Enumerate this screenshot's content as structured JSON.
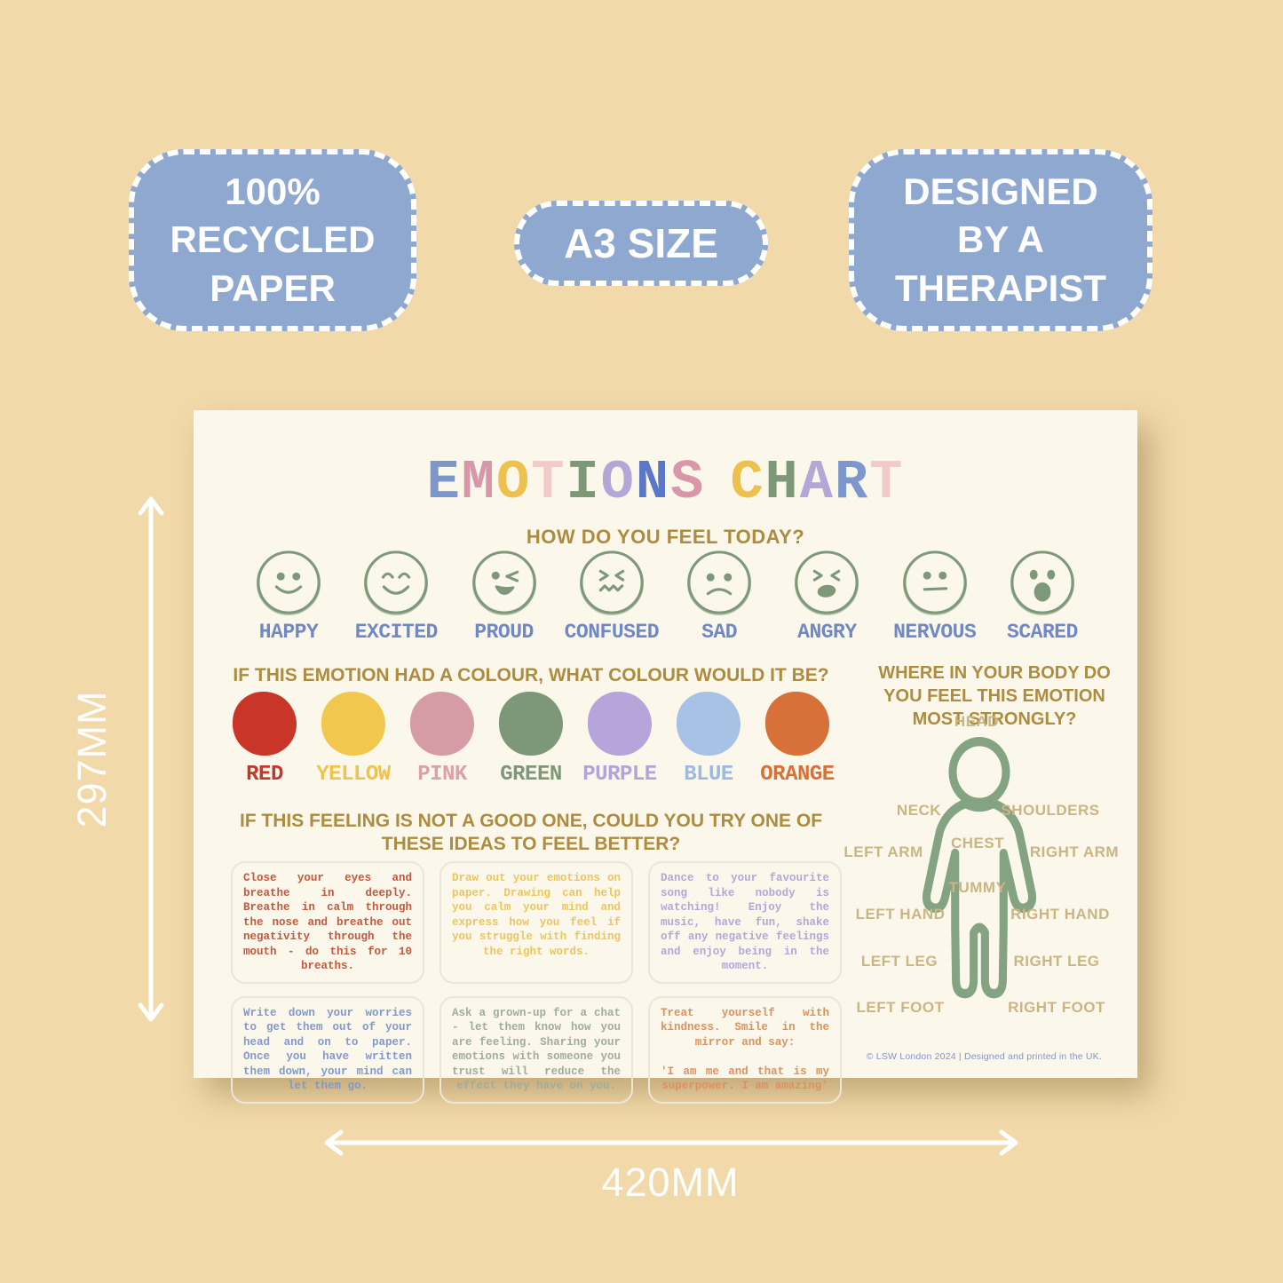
{
  "badges": [
    {
      "name": "recycled-paper",
      "lines": [
        "100%",
        "RECYCLED",
        "PAPER"
      ]
    },
    {
      "name": "a3-size",
      "lines": [
        "A3 SIZE"
      ]
    },
    {
      "name": "designed-by-therapist",
      "lines": [
        "DESIGNED",
        "BY A",
        "THERAPIST"
      ]
    }
  ],
  "dimensions": {
    "height_label": "297MM",
    "width_label": "420MM"
  },
  "poster": {
    "title_letters": [
      {
        "ch": "E",
        "color": "#7b97cc"
      },
      {
        "ch": "M",
        "color": "#d897a9"
      },
      {
        "ch": "O",
        "color": "#eec04d"
      },
      {
        "ch": "T",
        "color": "#f1cbc7"
      },
      {
        "ch": "I",
        "color": "#7d9878"
      },
      {
        "ch": "O",
        "color": "#b2a7d7"
      },
      {
        "ch": "N",
        "color": "#5d77c8"
      },
      {
        "ch": "S",
        "color": "#d897a9"
      },
      {
        "ch": " ",
        "color": ""
      },
      {
        "ch": "C",
        "color": "#eec04d"
      },
      {
        "ch": "H",
        "color": "#7d9878"
      },
      {
        "ch": "A",
        "color": "#b2a7d7"
      },
      {
        "ch": "R",
        "color": "#7b97cc"
      },
      {
        "ch": "T",
        "color": "#f1cbc7"
      }
    ],
    "subtitle": "HOW DO YOU FEEL TODAY?",
    "faces": [
      {
        "label": "HAPPY",
        "type": "happy"
      },
      {
        "label": "EXCITED",
        "type": "excited"
      },
      {
        "label": "PROUD",
        "type": "proud"
      },
      {
        "label": "CONFUSED",
        "type": "confused"
      },
      {
        "label": "SAD",
        "type": "sad"
      },
      {
        "label": "ANGRY",
        "type": "angry"
      },
      {
        "label": "NERVOUS",
        "type": "nervous"
      },
      {
        "label": "SCARED",
        "type": "scared"
      }
    ],
    "colour_question": "IF THIS EMOTION HAD A COLOUR, WHAT COLOUR WOULD IT BE?",
    "colours": [
      {
        "label": "RED",
        "fill": "#c93529",
        "label_color": "#c0392b"
      },
      {
        "label": "YELLOW",
        "fill": "#f2c74e",
        "label_color": "#eec34e"
      },
      {
        "label": "PINK",
        "fill": "#d69ca5",
        "label_color": "#d9a2ab"
      },
      {
        "label": "GREEN",
        "fill": "#7d9879",
        "label_color": "#7d9879"
      },
      {
        "label": "PURPLE",
        "fill": "#b6a4da",
        "label_color": "#b2a3d8"
      },
      {
        "label": "BLUE",
        "fill": "#a7c2e5",
        "label_color": "#9db9de"
      },
      {
        "label": "ORANGE",
        "fill": "#d8703a",
        "label_color": "#d8703a"
      }
    ],
    "ideas_question_line1": "IF THIS FEELING IS NOT A GOOD ONE, COULD YOU TRY ONE OF",
    "ideas_question_line2": "THESE IDEAS TO FEEL BETTER?",
    "ideas": [
      {
        "color": "#c4573e",
        "text": "Close your eyes and breathe in deeply. Breathe in calm through the nose and breathe out negativity through the mouth - do this for 10 breaths."
      },
      {
        "color": "#ecc55e",
        "text": "Draw out your emotions on paper. Drawing can help you calm your mind and express how you feel if you struggle with finding the right words."
      },
      {
        "color": "#b2a8d8",
        "text": "Dance to your favourite song like nobody is watching! Enjoy the music, have fun, shake off any negative feelings and enjoy being in the moment."
      },
      {
        "color": "#8199cc",
        "text": "Write down your worries to get them out of your head and on to paper. Once you have written them down, your mind can let them go."
      },
      {
        "color": "#a0ad9b",
        "text": "Ask a grown-up for a chat - let them know how you are feeling. Sharing your emotions with someone you trust will reduce the effect they have on you."
      },
      {
        "color": "#dc9160",
        "text": "Treat yourself with kindness. Smile in the mirror and say:\n\n'I am me and that is my superpower. I am amazing'"
      }
    ],
    "body_question": "WHERE IN YOUR BODY DO YOU FEEL THIS EMOTION MOST STRONGLY?",
    "body_labels": [
      {
        "id": "head",
        "label": "HEAD"
      },
      {
        "id": "neck",
        "label": "NECK"
      },
      {
        "id": "shoulders",
        "label": "SHOULDERS"
      },
      {
        "id": "left-arm",
        "label": "LEFT ARM"
      },
      {
        "id": "chest",
        "label": "CHEST"
      },
      {
        "id": "right-arm",
        "label": "RIGHT ARM"
      },
      {
        "id": "tummy",
        "label": "TUMMY"
      },
      {
        "id": "left-hand",
        "label": "LEFT HAND"
      },
      {
        "id": "right-hand",
        "label": "RIGHT HAND"
      },
      {
        "id": "left-leg",
        "label": "LEFT LEG"
      },
      {
        "id": "right-leg",
        "label": "RIGHT LEG"
      },
      {
        "id": "left-foot",
        "label": "LEFT FOOT"
      },
      {
        "id": "right-foot",
        "label": "RIGHT FOOT"
      }
    ],
    "footer": "© LSW London 2024 | Designed and printed in the UK."
  }
}
